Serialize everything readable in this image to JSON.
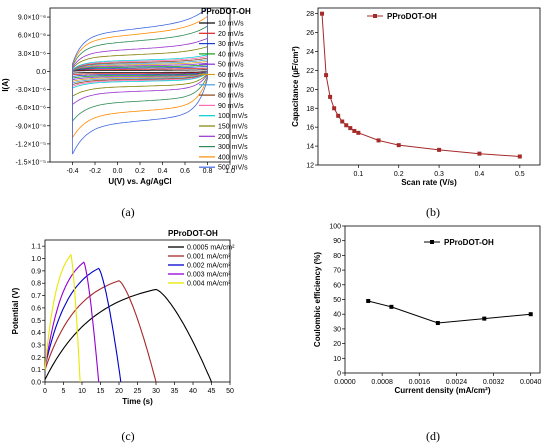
{
  "chart_data": [
    {
      "id": "a",
      "type": "line",
      "caption": "(a)",
      "xlabel": "U(V) vs. Ag/AgCl",
      "ylabel": "I(A)",
      "xlim": [
        -0.6,
        1.0
      ],
      "ylim": [
        -1.5e-05,
        1.05e-05
      ],
      "xticks": [
        -0.4,
        -0.2,
        0.0,
        0.2,
        0.4,
        0.6,
        0.8,
        1.0
      ],
      "xtick_labels": [
        "-0.4",
        "-0.2",
        "0.0",
        "0.2",
        "0.4",
        "0.6",
        "0.8",
        "1.0"
      ],
      "yticks": [
        -1.5e-05,
        -1.2e-05,
        -9e-06,
        -6e-06,
        -3e-06,
        0,
        3e-06,
        6e-06,
        9e-06
      ],
      "ytick_labels": [
        "-1.5×10⁻⁵",
        "-1.2×10⁻⁵",
        "-9.0×10⁻⁶",
        "-6.0×10⁻⁶",
        "-3.0×10⁻⁶",
        "0.0",
        "3.0×10⁻⁶",
        "6.0×10⁻⁶",
        "9.0×10⁻⁶"
      ],
      "legend_title": "PProDOT-OH",
      "legend_position": "right",
      "series": [
        {
          "name": "10 mV/s",
          "color": "#000000",
          "i_top": 2.2e-07,
          "i_bottom": -2e-07
        },
        {
          "name": "20 mV/s",
          "color": "#e02020",
          "i_top": 4.4e-07,
          "i_bottom": -4e-07
        },
        {
          "name": "30 mV/s",
          "color": "#1a3fd0",
          "i_top": 6.6e-07,
          "i_bottom": -6e-07
        },
        {
          "name": "40 mV/s",
          "color": "#10a010",
          "i_top": 8.8e-07,
          "i_bottom": -8e-07
        },
        {
          "name": "50 mV/s",
          "color": "#8a2be2",
          "i_top": 1.1e-06,
          "i_bottom": -1e-06
        },
        {
          "name": "60 mV/s",
          "color": "#d4a017",
          "i_top": 1.32e-06,
          "i_bottom": -1.2e-06
        },
        {
          "name": "70 mV/s",
          "color": "#4aa0e0",
          "i_top": 1.54e-06,
          "i_bottom": -1.4e-06
        },
        {
          "name": "80 mV/s",
          "color": "#8b4513",
          "i_top": 1.76e-06,
          "i_bottom": -1.6e-06
        },
        {
          "name": "90 mV/s",
          "color": "#ff69b4",
          "i_top": 1.98e-06,
          "i_bottom": -1.8e-06
        },
        {
          "name": "100 mV/s",
          "color": "#00ced1",
          "i_top": 2.2e-06,
          "i_bottom": -2e-06
        },
        {
          "name": "150 mV/s",
          "color": "#808000",
          "i_top": 3.3e-06,
          "i_bottom": -3e-06
        },
        {
          "name": "200 mV/s",
          "color": "#9932cc",
          "i_top": 4.4e-06,
          "i_bottom": -4e-06
        },
        {
          "name": "300 mV/s",
          "color": "#2e8b57",
          "i_top": 6e-06,
          "i_bottom": -6e-06
        },
        {
          "name": "400 mV/s",
          "color": "#ff8c00",
          "i_top": 7.3e-06,
          "i_bottom": -8e-06
        },
        {
          "name": "500 mV/s",
          "color": "#4169e1",
          "i_top": 8.4e-06,
          "i_bottom": -1e-05
        }
      ],
      "x_range": [
        -0.4,
        0.8
      ]
    },
    {
      "id": "b",
      "type": "line",
      "caption": "(b)",
      "xlabel": "Scan rate (V/s)",
      "ylabel": "Capacitance (µF/cm²)",
      "xlim": [
        0,
        0.55
      ],
      "ylim": [
        12,
        28.6
      ],
      "xticks": [
        0.1,
        0.2,
        0.3,
        0.4,
        0.5
      ],
      "xtick_labels": [
        "0.1",
        "0.2",
        "0.3",
        "0.4",
        "0.5"
      ],
      "yticks": [
        12,
        14,
        16,
        18,
        20,
        22,
        24,
        26,
        28
      ],
      "ytick_labels": [
        "12",
        "14",
        "16",
        "18",
        "20",
        "22",
        "24",
        "26",
        "28"
      ],
      "legend_position": "top-right",
      "series": [
        {
          "name": "PProDOT-OH",
          "color": "#a52a2a",
          "x": [
            0.01,
            0.02,
            0.03,
            0.04,
            0.05,
            0.06,
            0.07,
            0.08,
            0.09,
            0.1,
            0.15,
            0.2,
            0.3,
            0.4,
            0.5
          ],
          "y": [
            28.0,
            21.5,
            19.2,
            18.0,
            17.2,
            16.6,
            16.2,
            15.9,
            15.6,
            15.4,
            14.6,
            14.1,
            13.6,
            13.2,
            12.9
          ]
        }
      ]
    },
    {
      "id": "c",
      "type": "line",
      "caption": "(c)",
      "xlabel": "Time (s)",
      "ylabel": "Potential (V)",
      "xlim": [
        0,
        50
      ],
      "ylim": [
        0,
        1.15
      ],
      "xticks": [
        0,
        5,
        10,
        15,
        20,
        25,
        30,
        35,
        40,
        45,
        50
      ],
      "xtick_labels": [
        "0",
        "5",
        "10",
        "15",
        "20",
        "25",
        "30",
        "35",
        "40",
        "45",
        "50"
      ],
      "yticks": [
        0.0,
        0.1,
        0.2,
        0.3,
        0.4,
        0.5,
        0.6,
        0.7,
        0.8,
        0.9,
        1.0,
        1.1
      ],
      "ytick_labels": [
        "0.0",
        "0.1",
        "0.2",
        "0.3",
        "0.4",
        "0.5",
        "0.6",
        "0.7",
        "0.8",
        "0.9",
        "1.0",
        "1.1"
      ],
      "legend_title": "PProDOT-OH",
      "legend_position": "top-right",
      "series": [
        {
          "name": "0.0005 mA/cm²",
          "color": "#000000",
          "start_v": 0.02,
          "t_peak": 30,
          "v_peak": 0.75,
          "t_end": 45
        },
        {
          "name": "0.001 mA/cm²",
          "color": "#a52a2a",
          "start_v": 0.1,
          "t_peak": 20,
          "v_peak": 0.82,
          "t_end": 30
        },
        {
          "name": "0.002 mA/cm²",
          "color": "#0000cd",
          "start_v": 0.12,
          "t_peak": 14.5,
          "v_peak": 0.92,
          "t_end": 20.5
        },
        {
          "name": "0.003 mA/cm²",
          "color": "#9400d3",
          "start_v": 0.1,
          "t_peak": 10.5,
          "v_peak": 0.97,
          "t_end": 14.5
        },
        {
          "name": "0.004 mA/cm²",
          "color": "#e8e800",
          "start_v": 0.1,
          "t_peak": 7,
          "v_peak": 1.03,
          "t_end": 9.5
        }
      ]
    },
    {
      "id": "d",
      "type": "line",
      "caption": "(d)",
      "xlabel": "Current density (mA/cm²)",
      "ylabel": "Coulombic efficiency (%)",
      "xlim": [
        0.0,
        0.0042
      ],
      "ylim": [
        0,
        100
      ],
      "xticks": [
        0.0,
        0.0008,
        0.0016,
        0.0024,
        0.0032,
        0.004
      ],
      "xtick_labels": [
        "0.0000",
        "0.0008",
        "0.0016",
        "0.0024",
        "0.0032",
        "0.0040"
      ],
      "yticks": [
        0,
        10,
        20,
        30,
        40,
        50,
        60,
        70,
        80,
        90,
        100
      ],
      "ytick_labels": [
        "0",
        "10",
        "20",
        "30",
        "40",
        "50",
        "60",
        "70",
        "80",
        "90",
        "100"
      ],
      "legend_position": "top-right",
      "series": [
        {
          "name": "PProDOT-OH",
          "color": "#000000",
          "x": [
            0.0005,
            0.001,
            0.002,
            0.003,
            0.004
          ],
          "y": [
            49,
            45,
            34,
            37,
            40
          ]
        }
      ]
    }
  ]
}
